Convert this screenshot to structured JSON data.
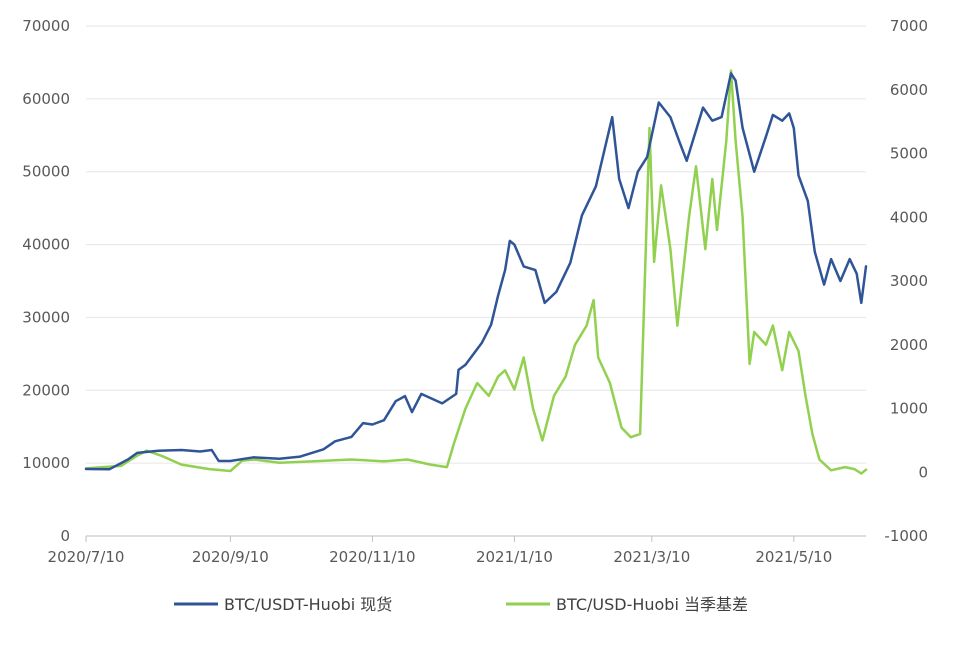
{
  "chart_data": {
    "type": "line",
    "title": "",
    "x_ticks": [
      "2020/7/10",
      "2020/9/10",
      "2020/11/10",
      "2021/1/10",
      "2021/3/10",
      "2021/5/10"
    ],
    "x_range": [
      "2020-07-10",
      "2021-06-10"
    ],
    "left_axis": {
      "ticks": [
        "0",
        "10000",
        "20000",
        "30000",
        "40000",
        "50000",
        "60000",
        "70000"
      ],
      "ylim": [
        0,
        70000
      ]
    },
    "right_axis": {
      "ticks": [
        "-1000",
        "0",
        "1000",
        "2000",
        "3000",
        "4000",
        "5000",
        "6000",
        "7000"
      ],
      "ylim": [
        -1000,
        7000
      ]
    },
    "gridlines": "horizontal",
    "legend_position": "bottom",
    "series": [
      {
        "name": "BTC/USDT-Huobi 现货",
        "axis": "left",
        "color": "#2F5597",
        "points": [
          [
            "2020-07-10",
            9200
          ],
          [
            "2020-07-20",
            9150
          ],
          [
            "2020-07-28",
            10500
          ],
          [
            "2020-08-01",
            11400
          ],
          [
            "2020-08-10",
            11700
          ],
          [
            "2020-08-20",
            11800
          ],
          [
            "2020-08-28",
            11600
          ],
          [
            "2020-09-02",
            11800
          ],
          [
            "2020-09-05",
            10300
          ],
          [
            "2020-09-10",
            10300
          ],
          [
            "2020-09-20",
            10800
          ],
          [
            "2020-10-01",
            10600
          ],
          [
            "2020-10-10",
            10900
          ],
          [
            "2020-10-20",
            11900
          ],
          [
            "2020-10-25",
            13000
          ],
          [
            "2020-11-01",
            13600
          ],
          [
            "2020-11-06",
            15500
          ],
          [
            "2020-11-10",
            15300
          ],
          [
            "2020-11-15",
            15900
          ],
          [
            "2020-11-20",
            18500
          ],
          [
            "2020-11-24",
            19200
          ],
          [
            "2020-11-27",
            17000
          ],
          [
            "2020-12-01",
            19500
          ],
          [
            "2020-12-10",
            18200
          ],
          [
            "2020-12-16",
            19500
          ],
          [
            "2020-12-17",
            22800
          ],
          [
            "2020-12-20",
            23500
          ],
          [
            "2020-12-27",
            26500
          ],
          [
            "2020-12-31",
            29000
          ],
          [
            "2021-01-03",
            33000
          ],
          [
            "2021-01-06",
            36500
          ],
          [
            "2021-01-08",
            40500
          ],
          [
            "2021-01-10",
            40000
          ],
          [
            "2021-01-14",
            37000
          ],
          [
            "2021-01-19",
            36500
          ],
          [
            "2021-01-23",
            32000
          ],
          [
            "2021-01-28",
            33500
          ],
          [
            "2021-02-03",
            37500
          ],
          [
            "2021-02-08",
            44000
          ],
          [
            "2021-02-14",
            48000
          ],
          [
            "2021-02-21",
            57500
          ],
          [
            "2021-02-24",
            49000
          ],
          [
            "2021-02-28",
            45000
          ],
          [
            "2021-03-04",
            50000
          ],
          [
            "2021-03-08",
            52000
          ],
          [
            "2021-03-13",
            59500
          ],
          [
            "2021-03-18",
            57500
          ],
          [
            "2021-03-22",
            54000
          ],
          [
            "2021-03-25",
            51500
          ],
          [
            "2021-04-01",
            58800
          ],
          [
            "2021-04-05",
            57000
          ],
          [
            "2021-04-09",
            57500
          ],
          [
            "2021-04-13",
            63500
          ],
          [
            "2021-04-15",
            62500
          ],
          [
            "2021-04-18",
            56000
          ],
          [
            "2021-04-23",
            50000
          ],
          [
            "2021-04-28",
            54800
          ],
          [
            "2021-05-01",
            57800
          ],
          [
            "2021-05-05",
            57000
          ],
          [
            "2021-05-08",
            58000
          ],
          [
            "2021-05-10",
            56000
          ],
          [
            "2021-05-12",
            49500
          ],
          [
            "2021-05-16",
            46000
          ],
          [
            "2021-05-19",
            39000
          ],
          [
            "2021-05-23",
            34500
          ],
          [
            "2021-05-26",
            38000
          ],
          [
            "2021-05-30",
            35000
          ],
          [
            "2021-06-03",
            38000
          ],
          [
            "2021-06-06",
            36000
          ],
          [
            "2021-06-08",
            32000
          ],
          [
            "2021-06-10",
            37000
          ]
        ]
      },
      {
        "name": "BTC/USD-Huobi 当季基差",
        "axis": "right",
        "color": "#92D050",
        "points": [
          [
            "2020-07-10",
            60
          ],
          [
            "2020-07-25",
            100
          ],
          [
            "2020-08-01",
            260
          ],
          [
            "2020-08-05",
            340
          ],
          [
            "2020-08-12",
            250
          ],
          [
            "2020-08-20",
            120
          ],
          [
            "2020-09-01",
            50
          ],
          [
            "2020-09-10",
            20
          ],
          [
            "2020-09-15",
            180
          ],
          [
            "2020-09-20",
            200
          ],
          [
            "2020-10-01",
            150
          ],
          [
            "2020-10-15",
            170
          ],
          [
            "2020-11-01",
            200
          ],
          [
            "2020-11-15",
            170
          ],
          [
            "2020-11-25",
            200
          ],
          [
            "2020-12-05",
            120
          ],
          [
            "2020-12-12",
            80
          ],
          [
            "2020-12-15",
            450
          ],
          [
            "2020-12-20",
            1000
          ],
          [
            "2020-12-25",
            1400
          ],
          [
            "2020-12-30",
            1200
          ],
          [
            "2021-01-03",
            1500
          ],
          [
            "2021-01-06",
            1600
          ],
          [
            "2021-01-10",
            1300
          ],
          [
            "2021-01-14",
            1800
          ],
          [
            "2021-01-18",
            1000
          ],
          [
            "2021-01-22",
            500
          ],
          [
            "2021-01-27",
            1200
          ],
          [
            "2021-02-01",
            1500
          ],
          [
            "2021-02-05",
            2000
          ],
          [
            "2021-02-10",
            2300
          ],
          [
            "2021-02-13",
            2700
          ],
          [
            "2021-02-15",
            1800
          ],
          [
            "2021-02-20",
            1400
          ],
          [
            "2021-02-25",
            700
          ],
          [
            "2021-03-01",
            550
          ],
          [
            "2021-03-05",
            600
          ],
          [
            "2021-03-09",
            5400
          ],
          [
            "2021-03-11",
            3300
          ],
          [
            "2021-03-14",
            4500
          ],
          [
            "2021-03-18",
            3500
          ],
          [
            "2021-03-21",
            2300
          ],
          [
            "2021-03-26",
            4000
          ],
          [
            "2021-03-29",
            4800
          ],
          [
            "2021-04-02",
            3500
          ],
          [
            "2021-04-05",
            4600
          ],
          [
            "2021-04-07",
            3800
          ],
          [
            "2021-04-11",
            5200
          ],
          [
            "2021-04-13",
            6300
          ],
          [
            "2021-04-15",
            5200
          ],
          [
            "2021-04-18",
            4000
          ],
          [
            "2021-04-21",
            1700
          ],
          [
            "2021-04-23",
            2200
          ],
          [
            "2021-04-28",
            2000
          ],
          [
            "2021-05-01",
            2300
          ],
          [
            "2021-05-05",
            1600
          ],
          [
            "2021-05-08",
            2200
          ],
          [
            "2021-05-12",
            1900
          ],
          [
            "2021-05-15",
            1200
          ],
          [
            "2021-05-18",
            600
          ],
          [
            "2021-05-21",
            200
          ],
          [
            "2021-05-26",
            30
          ],
          [
            "2021-06-01",
            80
          ],
          [
            "2021-06-05",
            50
          ],
          [
            "2021-06-08",
            -20
          ],
          [
            "2021-06-10",
            40
          ]
        ]
      }
    ]
  }
}
